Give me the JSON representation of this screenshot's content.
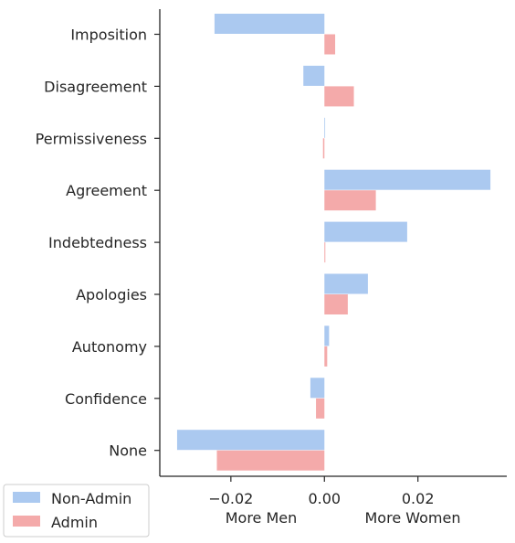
{
  "chart_data": {
    "type": "bar",
    "orientation": "horizontal",
    "categories": [
      "Imposition",
      "Disagreement",
      "Permissiveness",
      "Agreement",
      "Indebtedness",
      "Apologies",
      "Autonomy",
      "Confidence",
      "None"
    ],
    "series": [
      {
        "name": "Non-Admin",
        "color": "#abc9f0",
        "values": [
          -0.0235,
          -0.0045,
          0.0,
          0.0355,
          0.0177,
          0.0093,
          0.001,
          -0.003,
          -0.0315
        ]
      },
      {
        "name": "Admin",
        "color": "#f4aaaa",
        "values": [
          0.0023,
          0.0063,
          -0.0003,
          0.011,
          0.0002,
          0.005,
          0.0006,
          -0.0018,
          -0.023
        ]
      }
    ],
    "x_ticks": [
      "−0.02",
      "0.00",
      "0.02"
    ],
    "x_tick_values": [
      -0.02,
      0.0,
      0.02
    ],
    "xlim": [
      -0.0352,
      0.039
    ],
    "x_annotations": [
      "More Men",
      "More Women"
    ],
    "legend": {
      "position": "bottom-left",
      "entries": [
        "Non-Admin",
        "Admin"
      ]
    },
    "grid": false
  }
}
